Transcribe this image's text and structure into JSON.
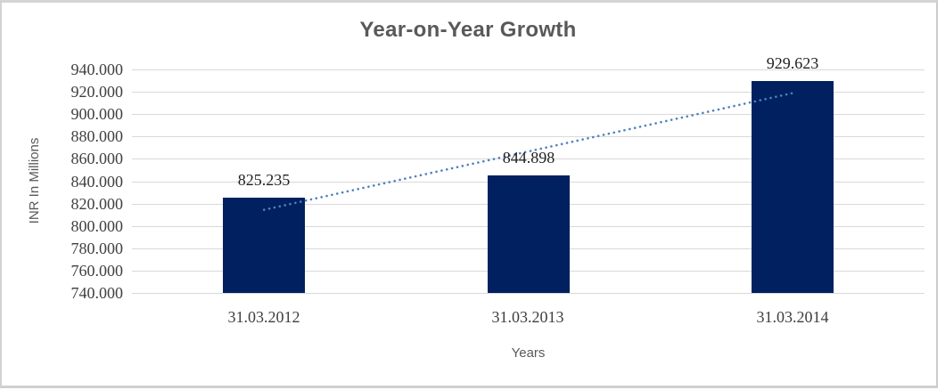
{
  "chart_data": {
    "type": "bar",
    "title": "Year-on-Year Growth",
    "xlabel": "Years",
    "ylabel": "INR In Millions",
    "categories": [
      "31.03.2012",
      "31.03.2013",
      "31.03.2014"
    ],
    "values": [
      825.235,
      844.898,
      929.623
    ],
    "data_labels": [
      "825.235",
      "844.898",
      "929.623"
    ],
    "ylim": [
      740,
      940
    ],
    "ytick_step": 20,
    "ytick_labels": [
      "940.000",
      "920.000",
      "900.000",
      "880.000",
      "860.000",
      "840.000",
      "820.000",
      "800.000",
      "780.000",
      "760.000",
      "740.000"
    ],
    "grid": true,
    "legend": "none",
    "trendline": {
      "fit": "linear",
      "style": "dotted",
      "color": "#4E81BD"
    },
    "colors": {
      "bar": "#002060",
      "gridline": "#D9D9D9",
      "title": "#595959",
      "axis_title": "#595959",
      "tick_label": "#3F3F3F",
      "data_label": "#1F1F1F",
      "frame_border": "#CFCFCF",
      "background": "#FFFFFF"
    }
  }
}
